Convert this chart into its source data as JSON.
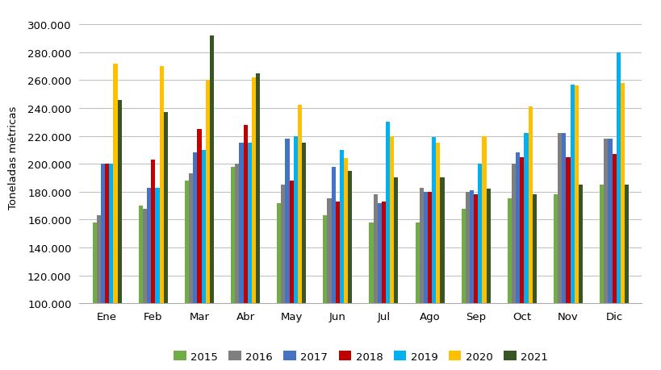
{
  "months": [
    "Ene",
    "Feb",
    "Mar",
    "Abr",
    "May",
    "Jun",
    "Jul",
    "Ago",
    "Sep",
    "Oct",
    "Nov",
    "Dic"
  ],
  "series": {
    "2015": [
      158000,
      170000,
      188000,
      198000,
      172000,
      163000,
      158000,
      158000,
      168000,
      175000,
      178000,
      185000
    ],
    "2016": [
      163000,
      168000,
      193000,
      200000,
      185000,
      175000,
      178000,
      183000,
      180000,
      200000,
      222000,
      218000
    ],
    "2017": [
      200000,
      183000,
      208000,
      215000,
      218000,
      198000,
      172000,
      180000,
      181000,
      208000,
      222000,
      218000
    ],
    "2018": [
      200000,
      203000,
      225000,
      228000,
      188000,
      173000,
      173000,
      180000,
      178000,
      205000,
      205000,
      207000
    ],
    "2019": [
      200000,
      183000,
      210000,
      215000,
      220000,
      210000,
      230000,
      219000,
      200000,
      222000,
      257000,
      280000
    ],
    "2020": [
      272000,
      270000,
      260000,
      262000,
      242000,
      204000,
      220000,
      215000,
      220000,
      241000,
      256000,
      258000
    ],
    "2021": [
      246000,
      237000,
      292000,
      265000,
      215000,
      195000,
      190000,
      190000,
      182000,
      178000,
      185000,
      185000
    ]
  },
  "colors": {
    "2015": "#70AD47",
    "2016": "#7F7F7F",
    "2017": "#4472C4",
    "2018": "#C00000",
    "2019": "#00B0F0",
    "2020": "#FFC000",
    "2021": "#375623"
  },
  "ylabel": "Toneladas métricas",
  "ylim": [
    100000,
    310000
  ],
  "yticks": [
    100000,
    120000,
    140000,
    160000,
    180000,
    200000,
    220000,
    240000,
    260000,
    280000,
    300000
  ],
  "background_color": "#FFFFFF",
  "grid_color": "#BEBEBE",
  "legend_years": [
    "2015",
    "2016",
    "2017",
    "2018",
    "2019",
    "2020",
    "2021"
  ]
}
